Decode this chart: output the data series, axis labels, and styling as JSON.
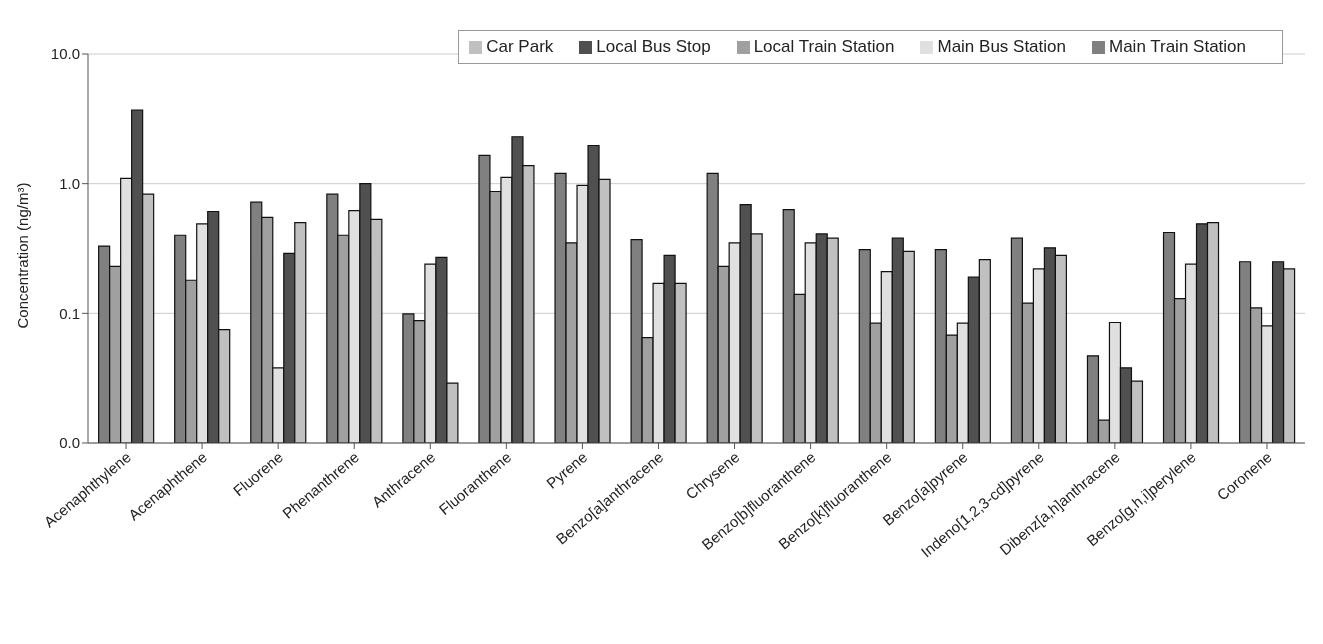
{
  "chart_data": {
    "type": "bar",
    "ylabel": "Concentration (ng/m³)",
    "categories": [
      "Acenaphthylene",
      "Acenaphthene",
      "Fluorene",
      "Phenanthrene",
      "Anthracene",
      "Fluoranthene",
      "Pyrene",
      "Benzo[a]anthracene",
      "Chrysene",
      "Benzo[b]fluoranthene",
      "Benzo[k]fluoranthene",
      "Benzo[a]pyrene",
      "Indeno[1,2,3-cd]pyrene",
      "Dibenz[a,h]anthracene",
      "Benzo[g,h,i]perylene",
      "Coronene"
    ],
    "series": [
      {
        "name": "Main Train Station",
        "color": "#808080",
        "values": [
          0.33,
          0.4,
          0.72,
          0.83,
          0.099,
          1.65,
          1.2,
          0.37,
          1.2,
          0.63,
          0.31,
          0.31,
          0.38,
          0.047,
          0.42,
          0.25
        ]
      },
      {
        "name": "Local Train Station",
        "color": "#a0a0a0",
        "values": [
          0.23,
          0.18,
          0.55,
          0.4,
          0.088,
          0.87,
          0.35,
          0.065,
          0.23,
          0.14,
          0.084,
          0.068,
          0.12,
          0.015,
          0.13,
          0.11
        ]
      },
      {
        "name": "Main Bus Station",
        "color": "#e0e0e0",
        "values": [
          1.1,
          0.49,
          0.038,
          0.62,
          0.24,
          1.12,
          0.97,
          0.17,
          0.35,
          0.35,
          0.21,
          0.084,
          0.22,
          0.085,
          0.24,
          0.08
        ]
      },
      {
        "name": "Local Bus Stop",
        "color": "#505050",
        "values": [
          3.7,
          0.61,
          0.29,
          1.0,
          0.27,
          2.3,
          1.97,
          0.28,
          0.69,
          0.41,
          0.38,
          0.19,
          0.32,
          0.038,
          0.49,
          0.25
        ]
      },
      {
        "name": "Car Park",
        "color": "#c0c0c0",
        "values": [
          0.83,
          0.075,
          0.5,
          0.53,
          0.029,
          1.38,
          1.08,
          0.17,
          0.41,
          0.38,
          0.3,
          0.26,
          0.28,
          0.03,
          0.5,
          0.22
        ]
      }
    ],
    "log": true,
    "ylim": [
      0.01,
      10
    ],
    "yticks": [
      {
        "value": 0.01,
        "label": "0.0"
      },
      {
        "value": 0.1,
        "label": "0.1"
      },
      {
        "value": 1,
        "label": "1.0"
      },
      {
        "value": 10,
        "label": "10.0"
      }
    ],
    "grid": "y",
    "legend": "top right"
  }
}
